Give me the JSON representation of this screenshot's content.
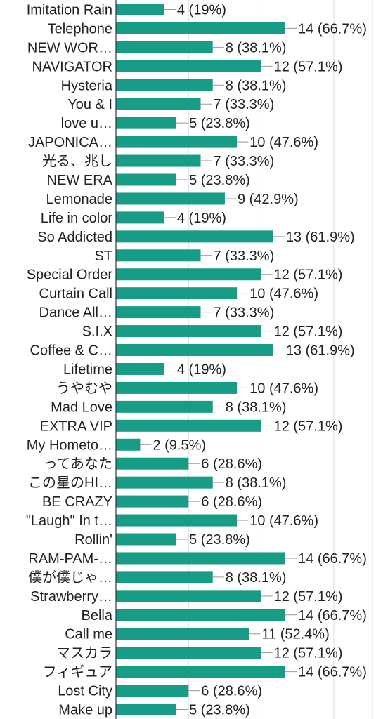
{
  "chart_data": {
    "type": "bar",
    "orientation": "horizontal",
    "categories": [
      "Imitation Rain",
      "Telephone",
      "NEW WOR…",
      "NAVIGATOR",
      "Hysteria",
      "You & I",
      "love u…",
      "JAPONICA…",
      "光る、兆し",
      "NEW ERA",
      "Lemonade",
      "Life in color",
      "So Addicted",
      "ST",
      "Special Order",
      "Curtain Call",
      "Dance All…",
      "S.I.X",
      "Coffee & C…",
      "Lifetime",
      "うやむや",
      "Mad Love",
      "EXTRA VIP",
      "My Hometo…",
      "ってあなた",
      "この星のHI…",
      "BE CRAZY",
      "\"Laugh\" In t…",
      "Rollin'",
      "RAM-PAM-…",
      "僕が僕じゃ…",
      "Strawberry…",
      "Bella",
      "Call me",
      "マスカラ",
      "フィギュア",
      "Lost City",
      "Make up"
    ],
    "values": [
      4,
      14,
      8,
      12,
      8,
      7,
      5,
      10,
      7,
      5,
      9,
      4,
      13,
      7,
      12,
      10,
      7,
      12,
      13,
      4,
      10,
      8,
      12,
      2,
      6,
      8,
      6,
      10,
      5,
      14,
      8,
      12,
      14,
      11,
      12,
      14,
      6,
      5
    ],
    "value_labels": [
      "4 (19%)",
      "14 (66.7%)",
      "8 (38.1%)",
      "12 (57.1%)",
      "8 (38.1%)",
      "7 (33.3%)",
      "5 (23.8%)",
      "10 (47.6%)",
      "7 (33.3%)",
      "5 (23.8%)",
      "9 (42.9%)",
      "4 (19%)",
      "13 (61.9%)",
      "7 (33.3%)",
      "12 (57.1%)",
      "10 (47.6%)",
      "7 (33.3%)",
      "12 (57.1%)",
      "13 (61.9%)",
      "4 (19%)",
      "10 (47.6%)",
      "8 (38.1%)",
      "12 (57.1%)",
      "2 (9.5%)",
      "6 (28.6%)",
      "8 (38.1%)",
      "6 (28.6%)",
      "10 (47.6%)",
      "5 (23.8%)",
      "14 (66.7%)",
      "8 (38.1%)",
      "12 (57.1%)",
      "14 (66.7%)",
      "11 (52.4%)",
      "12 (57.1%)",
      "14 (66.7%)",
      "6 (28.6%)",
      "5 (23.8%)"
    ],
    "xlim": [
      0,
      21.2
    ],
    "grid": true,
    "x_gridlines": [
      6,
      12,
      18
    ]
  },
  "colors": {
    "bar": "#179c86",
    "axis": "#333333",
    "grid": "#dddddd",
    "connector": "#999999",
    "text": "#222222"
  }
}
